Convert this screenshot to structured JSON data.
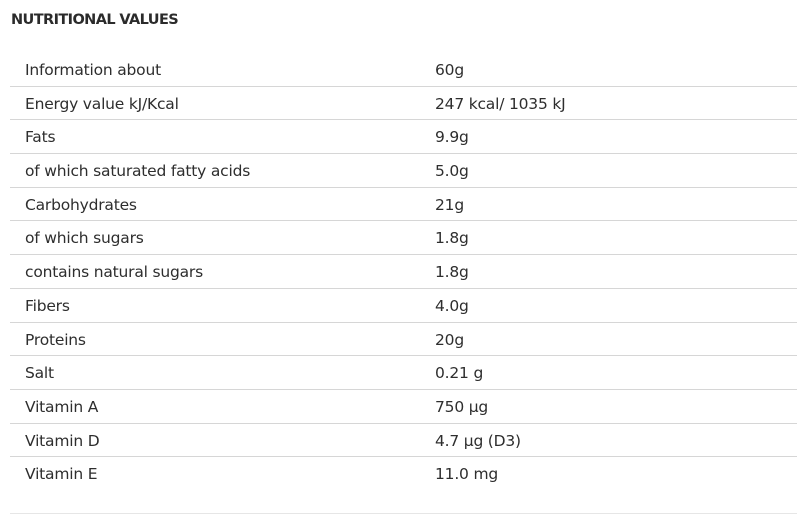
{
  "title": "NUTRITIONAL VALUES",
  "rows": [
    {
      "label": "Information about",
      "value": "60g"
    },
    {
      "label": "Energy value kJ/Kcal",
      "value": "247 kcal/ 1035 kJ"
    },
    {
      "label": "Fats",
      "value": "9.9g"
    },
    {
      "label": "of which saturated fatty acids",
      "value": "5.0g"
    },
    {
      "label": "Carbohydrates",
      "value": "21g"
    },
    {
      "label": "of which sugars",
      "value": "1.8g"
    },
    {
      "label": "contains natural sugars",
      "value": "1.8g"
    },
    {
      "label": "Fibers",
      "value": "4.0g"
    },
    {
      "label": "Proteins",
      "value": "20g"
    },
    {
      "label": "Salt",
      "value": "0.21 g"
    },
    {
      "label": "Vitamin A",
      "value": "750 µg"
    },
    {
      "label": "Vitamin D",
      "value": "4.7 µg (D3)"
    },
    {
      "label": "Vitamin E",
      "value": "11.0 mg"
    }
  ]
}
